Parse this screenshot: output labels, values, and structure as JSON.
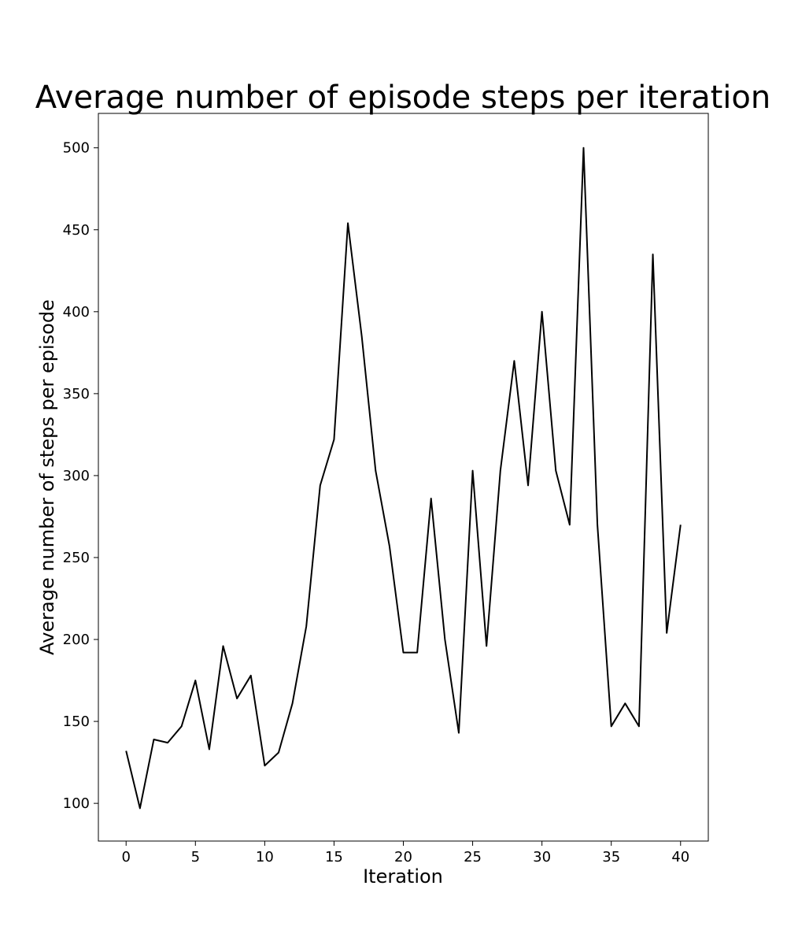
{
  "chart_data": {
    "type": "line",
    "title": "Average number of episode steps per iteration",
    "xlabel": "Iteration",
    "ylabel": "Average number of steps per episode",
    "xlim": [
      -2,
      42
    ],
    "ylim": [
      77,
      521
    ],
    "xticks": [
      0,
      5,
      10,
      15,
      20,
      25,
      30,
      35,
      40
    ],
    "yticks": [
      100,
      150,
      200,
      250,
      300,
      350,
      400,
      450,
      500
    ],
    "grid": false,
    "series": [
      {
        "color": "#000000",
        "x": [
          0,
          1,
          2,
          3,
          4,
          5,
          6,
          7,
          8,
          9,
          10,
          11,
          12,
          13,
          14,
          15,
          16,
          17,
          18,
          19,
          20,
          21,
          22,
          23,
          24,
          25,
          26,
          27,
          28,
          29,
          30,
          31,
          32,
          33,
          34,
          35,
          36,
          37,
          38,
          39,
          40
        ],
        "y": [
          132,
          97,
          139,
          137,
          147,
          175,
          133,
          196,
          164,
          178,
          123,
          131,
          161,
          208,
          294,
          322,
          454,
          385,
          303,
          257,
          192,
          192,
          286,
          200,
          143,
          303,
          196,
          303,
          370,
          294,
          400,
          303,
          270,
          500,
          270,
          147,
          161,
          147,
          435,
          204,
          270
        ]
      }
    ]
  }
}
